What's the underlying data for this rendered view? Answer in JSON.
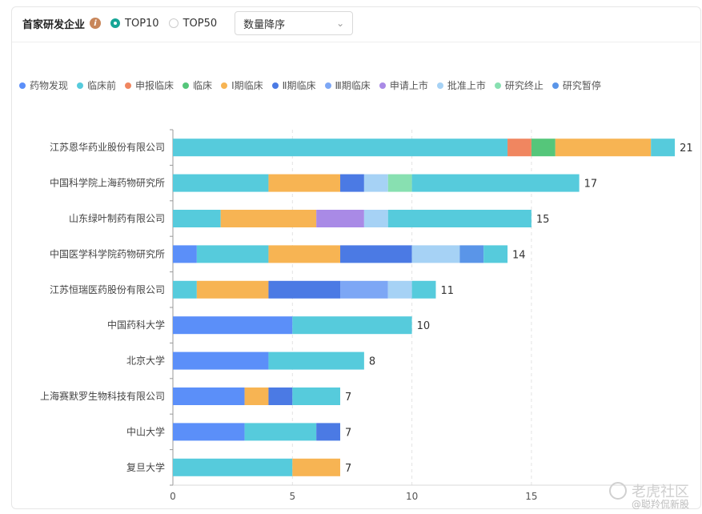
{
  "header": {
    "title": "首家研发企业",
    "info_icon": "info-icon",
    "radios": [
      {
        "label": "TOP10",
        "checked": true
      },
      {
        "label": "TOP50",
        "checked": false
      }
    ],
    "sort_select": {
      "value": "数量降序"
    }
  },
  "legend": [
    {
      "name": "药物发现",
      "color": "#5b8ff9"
    },
    {
      "name": "临床前",
      "color": "#56cbdc"
    },
    {
      "name": "申报临床",
      "color": "#f08660"
    },
    {
      "name": "临床",
      "color": "#55c67a"
    },
    {
      "name": "Ⅰ期临床",
      "color": "#f7b453"
    },
    {
      "name": "Ⅱ期临床",
      "color": "#4b7ae4"
    },
    {
      "name": "Ⅲ期临床",
      "color": "#7da7f5"
    },
    {
      "name": "申请上市",
      "color": "#a98ae6"
    },
    {
      "name": "批准上市",
      "color": "#a6d2f5"
    },
    {
      "name": "研究终止",
      "color": "#88e0b1"
    },
    {
      "name": "研究暂停",
      "color": "#5a95e8"
    }
  ],
  "chart_data": {
    "type": "bar",
    "orientation": "horizontal",
    "stacked": true,
    "categories": [
      "江苏恩华药业股份有限公司",
      "中国科学院上海药物研究所",
      "山东绿叶制药有限公司",
      "中国医学科学院药物研究所",
      "江苏恒瑞医药股份有限公司",
      "中国药科大学",
      "北京大学",
      "上海赛默罗生物科技有限公司",
      "中山大学",
      "复旦大学"
    ],
    "totals": [
      21,
      17,
      15,
      14,
      11,
      10,
      8,
      7,
      7,
      7
    ],
    "segments": [
      [
        [
          "临床前",
          14
        ],
        [
          "申报临床",
          1
        ],
        [
          "临床",
          1
        ],
        [
          "Ⅰ期临床",
          4
        ],
        [
          "临床前",
          1
        ]
      ],
      [
        [
          "临床前",
          4
        ],
        [
          "Ⅰ期临床",
          3
        ],
        [
          "Ⅱ期临床",
          1
        ],
        [
          "批准上市",
          1
        ],
        [
          "研究终止",
          1
        ],
        [
          "临床前",
          7
        ]
      ],
      [
        [
          "临床前",
          2
        ],
        [
          "Ⅰ期临床",
          4
        ],
        [
          "申请上市",
          2
        ],
        [
          "批准上市",
          1
        ],
        [
          "临床前",
          6
        ]
      ],
      [
        [
          "药物发现",
          1
        ],
        [
          "临床前",
          3
        ],
        [
          "Ⅰ期临床",
          3
        ],
        [
          "Ⅱ期临床",
          3
        ],
        [
          "批准上市",
          2
        ],
        [
          "研究暂停",
          1
        ],
        [
          "临床前",
          1
        ]
      ],
      [
        [
          "临床前",
          1
        ],
        [
          "Ⅰ期临床",
          3
        ],
        [
          "Ⅱ期临床",
          3
        ],
        [
          "Ⅲ期临床",
          2
        ],
        [
          "批准上市",
          1
        ],
        [
          "临床前",
          1
        ]
      ],
      [
        [
          "药物发现",
          5
        ],
        [
          "临床前",
          5
        ]
      ],
      [
        [
          "药物发现",
          4
        ],
        [
          "临床前",
          4
        ]
      ],
      [
        [
          "药物发现",
          3
        ],
        [
          "Ⅰ期临床",
          1
        ],
        [
          "Ⅱ期临床",
          1
        ],
        [
          "临床前",
          2
        ]
      ],
      [
        [
          "药物发现",
          3
        ],
        [
          "临床前",
          3
        ],
        [
          "Ⅱ期临床",
          1
        ]
      ],
      [
        [
          "临床前",
          5
        ],
        [
          "Ⅰ期临床",
          2
        ]
      ]
    ],
    "x_ticks": [
      0,
      5,
      10,
      15
    ],
    "xlim": [
      0,
      21.5
    ],
    "grid": "vertical-dashed",
    "legend_position": "top"
  },
  "watermark": {
    "brand": "老虎社区",
    "user": "@聪羚侃新股"
  }
}
